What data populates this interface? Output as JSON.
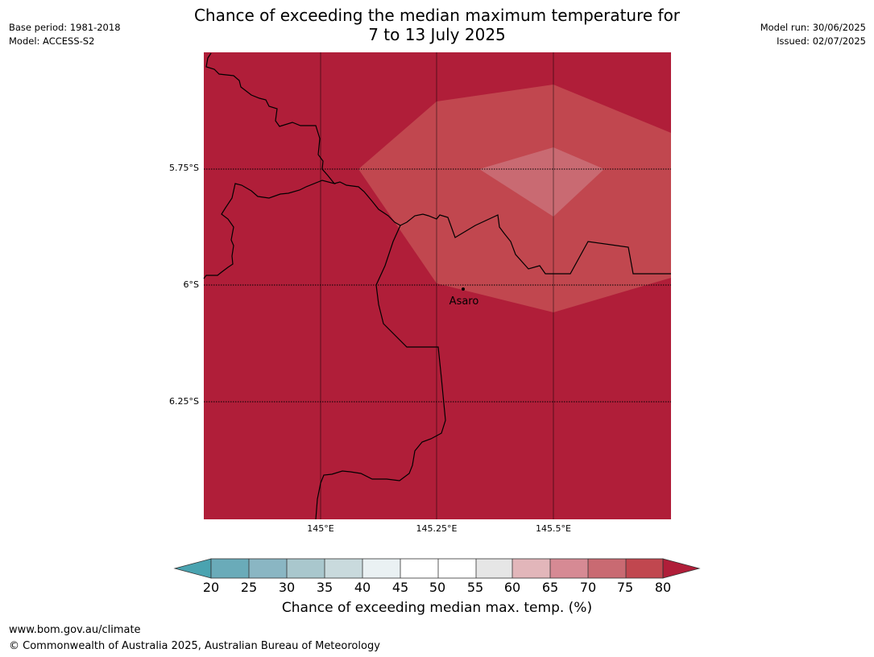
{
  "title": {
    "line1": "Chance of exceeding the median maximum temperature for",
    "line2": "7 to 13 July 2025"
  },
  "meta_left": {
    "base_period": "Base period: 1981-2018",
    "model": "Model: ACCESS-S2"
  },
  "meta_right": {
    "model_run": "Model run: 30/06/2025",
    "issued": "Issued: 02/07/2025"
  },
  "map": {
    "lat_labels": [
      "5.75°S",
      "6°S",
      "6.25°S"
    ],
    "lon_labels": [
      "145°E",
      "145.25°E",
      "145.5°E"
    ],
    "place": "Asaro",
    "colors": {
      "band_80plus": "#b01e39",
      "band_75_80": "#c1474f",
      "band_70_75": "#c96a72",
      "border": "#000000"
    }
  },
  "colorbar": {
    "ticks": [
      "20",
      "25",
      "30",
      "35",
      "40",
      "45",
      "50",
      "55",
      "60",
      "65",
      "70",
      "75",
      "80"
    ],
    "colors": [
      "#4aa3b0",
      "#6aabb9",
      "#8ab6c3",
      "#a9c7cd",
      "#c9dadd",
      "#eaf1f3",
      "#ffffff",
      "#ffffff",
      "#e6e6e6",
      "#e2b6ba",
      "#d68a94",
      "#c96a72",
      "#c1474f",
      "#b01e39"
    ],
    "label": "Chance of exceeding median max. temp. (%)"
  },
  "footer": {
    "url": "www.bom.gov.au/climate",
    "copyright": "© Commonwealth of Australia 2025, Australian Bureau of Meteorology"
  }
}
